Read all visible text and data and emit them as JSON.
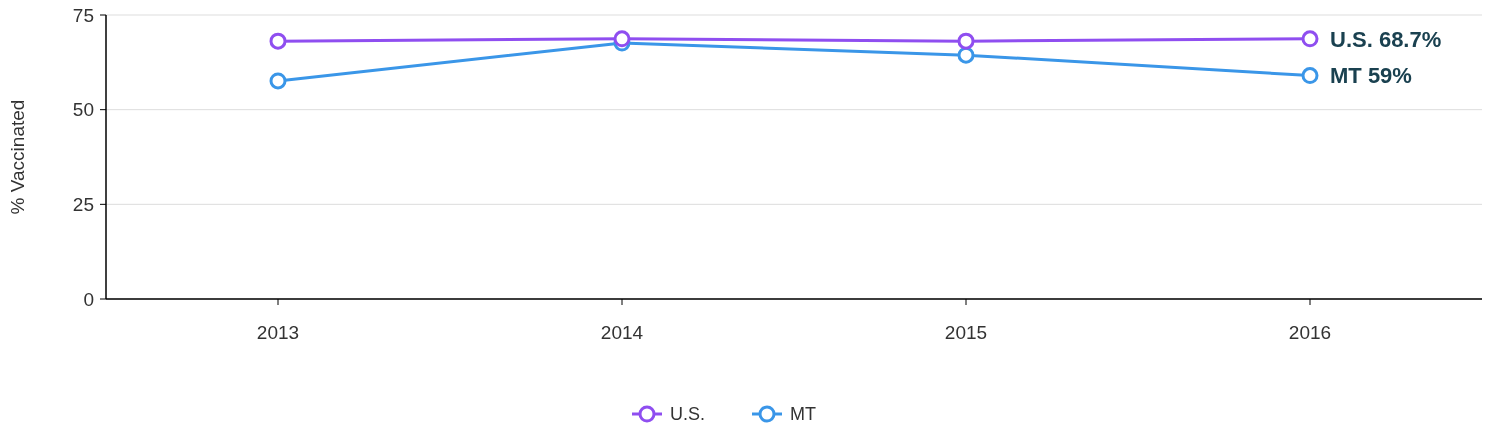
{
  "chart_data": {
    "type": "line",
    "ylabel": "% Vaccinated",
    "categories": [
      "2013",
      "2014",
      "2015",
      "2016"
    ],
    "series": [
      {
        "name": "U.S.",
        "color": "#8f4ef0",
        "values": [
          68.1,
          68.7,
          68.1,
          68.7
        ]
      },
      {
        "name": "MT",
        "color": "#3a96e8",
        "values": [
          57.6,
          67.6,
          64.4,
          59
        ]
      }
    ],
    "ylim": [
      0,
      75
    ],
    "yticks": [
      0,
      25,
      50,
      75
    ],
    "grid": "y",
    "legend": "bottom",
    "marker": "circle",
    "line_style": "solid",
    "annotations": [
      {
        "text": "U.S. 68.7%",
        "x": "2016",
        "y": 68.7
      },
      {
        "text": "MT 59%",
        "x": "2016",
        "y": 59
      }
    ]
  }
}
